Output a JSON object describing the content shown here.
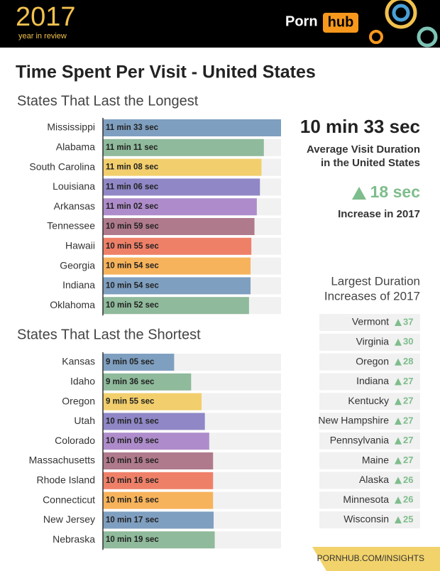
{
  "header": {
    "year": "2017",
    "tagline": "year in review",
    "logo_left": "Porn",
    "logo_right": "hub"
  },
  "title": "Time Spent Per Visit - United States",
  "summary": {
    "headline": "10 min 33 sec",
    "caption_1": "Average Visit Duration",
    "caption_2": "in the United States",
    "change": "18 sec",
    "change_caption": "Increase in 2017"
  },
  "chart_data": [
    {
      "type": "bar",
      "title": "States That Last the Longest",
      "categories": [
        "Mississippi",
        "Alabama",
        "South Carolina",
        "Louisiana",
        "Arkansas",
        "Tennessee",
        "Hawaii",
        "Georgia",
        "Indiana",
        "Oklahoma"
      ],
      "values": [
        693,
        671,
        668,
        666,
        662,
        659,
        655,
        654,
        654,
        652
      ],
      "value_labels": [
        "11 min 33 sec",
        "11 min 11 sec",
        "11 min 08 sec",
        "11 min 06 sec",
        "11 min 02 sec",
        "10 min 59 sec",
        "10 min 55 sec",
        "10 min 54 sec",
        "10 min 54 sec",
        "10 min 52 sec"
      ],
      "colors": [
        "#7f9fc0",
        "#8fba9b",
        "#f2cf6c",
        "#8f87c6",
        "#ae8ccb",
        "#b07a8d",
        "#ef8068",
        "#f7b35b",
        "#7f9fc0",
        "#8fba9b"
      ],
      "xlim": [
        465,
        693
      ]
    },
    {
      "type": "bar",
      "title": "States That Last the Shortest",
      "categories": [
        "Kansas",
        "Idaho",
        "Oregon",
        "Utah",
        "Colorado",
        "Massachusetts",
        "Rhode Island",
        "Connecticut",
        "New Jersey",
        "Nebraska"
      ],
      "values": [
        545,
        576,
        595,
        601,
        609,
        616,
        616,
        616,
        617,
        619
      ],
      "value_labels": [
        "9 min 05 sec",
        "9 min 36 sec",
        "9 min 55 sec",
        "10 min 01 sec",
        "10 min 09 sec",
        "10 min 16 sec",
        "10 min 16 sec",
        "10 min 16 sec",
        "10 min 17 sec",
        "10 min 19 sec"
      ],
      "colors": [
        "#7f9fc0",
        "#8fba9b",
        "#f2cf6c",
        "#8f87c6",
        "#ae8ccb",
        "#b07a8d",
        "#ef8068",
        "#f7b35b",
        "#7f9fc0",
        "#8fba9b"
      ],
      "xlim": [
        415,
        740
      ]
    }
  ],
  "increases": {
    "title_1": "Largest Duration",
    "title_2": "Increases of 2017",
    "rows": [
      [
        "Vermont",
        "37"
      ],
      [
        "Virginia",
        "30"
      ],
      [
        "Oregon",
        "28"
      ],
      [
        "Indiana",
        "27"
      ],
      [
        "Kentucky",
        "27"
      ],
      [
        "New Hampshire",
        "27"
      ],
      [
        "Pennsylvania",
        "27"
      ],
      [
        "Maine",
        "27"
      ],
      [
        "Alaska",
        "26"
      ],
      [
        "Minnesota",
        "26"
      ],
      [
        "Wisconsin",
        "25"
      ]
    ]
  },
  "footer": "PORNHUB.COM/INSIGHTS"
}
